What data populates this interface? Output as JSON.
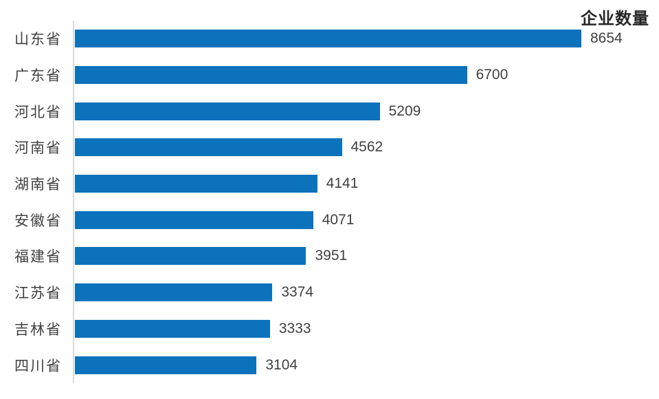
{
  "chart_data": {
    "type": "bar",
    "orientation": "horizontal",
    "title": "企业数量",
    "categories": [
      "山东省",
      "广东省",
      "河北省",
      "河南省",
      "湖南省",
      "安徽省",
      "福建省",
      "江苏省",
      "吉林省",
      "四川省"
    ],
    "values": [
      8654,
      6700,
      5209,
      4562,
      4141,
      4071,
      3951,
      3374,
      3333,
      3104
    ],
    "value_labels": true,
    "grid": false,
    "legend": "none",
    "xlabel": "",
    "ylabel": "",
    "xlim": [
      0,
      9000
    ],
    "colors": {
      "bar": "#0d72bc",
      "axis_line": "#d9d9d9",
      "category_text": "#404040",
      "value_text": "#404040",
      "title_text": "#262626",
      "background": "#ffffff"
    }
  }
}
